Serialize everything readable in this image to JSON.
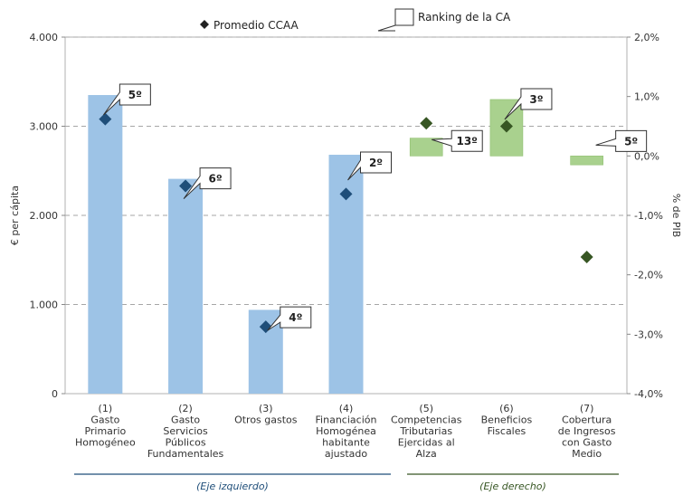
{
  "chart_data": {
    "type": "bar",
    "legend": {
      "marker_label": "Promedio CCAA",
      "callout_label": "Ranking de la CA",
      "placement": "top"
    },
    "colors": {
      "left_bar": "#9dc3e6",
      "right_bar": "#a9d18e",
      "left_marker": "#1f4e79",
      "right_marker": "#375623",
      "left_group_line": "#1f4e79",
      "right_group_line": "#375623",
      "grid": "#a6a6a6"
    },
    "y_left": {
      "label": "€ per cápita",
      "ylim": [
        0,
        4000
      ],
      "ticks": [
        0,
        1000,
        2000,
        3000,
        4000
      ],
      "tick_labels": [
        "0",
        "1.000",
        "2.000",
        "3.000",
        "4.000"
      ]
    },
    "y_right": {
      "label": "% de PIB",
      "ylim": [
        -4.0,
        2.0
      ],
      "ticks": [
        -4.0,
        -3.0,
        -2.0,
        -1.0,
        0.0,
        1.0,
        2.0
      ],
      "tick_labels": [
        "-4,0%",
        "-3,0%",
        "-2,0%",
        "-1,0%",
        "0,0%",
        "1,0%",
        "2,0%"
      ]
    },
    "grid": true,
    "categories": [
      {
        "label": [
          "(1)",
          "Gasto",
          "Primario",
          "Homogéneo"
        ],
        "axis": "left",
        "value": 3350,
        "average": 3080,
        "rank": "5º"
      },
      {
        "label": [
          "(2)",
          "Gasto",
          "Servicios",
          "Públicos",
          "Fundamentales"
        ],
        "axis": "left",
        "value": 2410,
        "average": 2330,
        "rank": "6º"
      },
      {
        "label": [
          "(3)",
          "Otros gastos"
        ],
        "axis": "left",
        "value": 940,
        "average": 750,
        "rank": "4º"
      },
      {
        "label": [
          "(4)",
          "Financiación",
          "Homogénea",
          "habitante",
          "ajustado"
        ],
        "axis": "left",
        "value": 2680,
        "average": 2240,
        "rank": "2º"
      },
      {
        "label": [
          "(5)",
          "Competencias",
          "Tributarias",
          "Ejercidas al",
          "Alza"
        ],
        "axis": "right",
        "value": 0.3,
        "base": 0.0,
        "average": 0.55,
        "rank": "13º"
      },
      {
        "label": [
          "(6)",
          "Beneficios",
          "Fiscales"
        ],
        "axis": "right",
        "value": 0.95,
        "base": 0.0,
        "average": 0.5,
        "rank": "3º"
      },
      {
        "label": [
          "(7)",
          "Cobertura",
          "de Ingresos",
          "con Gasto",
          "Medio"
        ],
        "axis": "right",
        "value": 0.0,
        "base": -0.15,
        "average": -1.7,
        "rank": "5º"
      }
    ],
    "groups": [
      {
        "label": "(Eje izquierdo)",
        "axis": "left"
      },
      {
        "label": "(Eje derecho)",
        "axis": "right"
      }
    ]
  }
}
